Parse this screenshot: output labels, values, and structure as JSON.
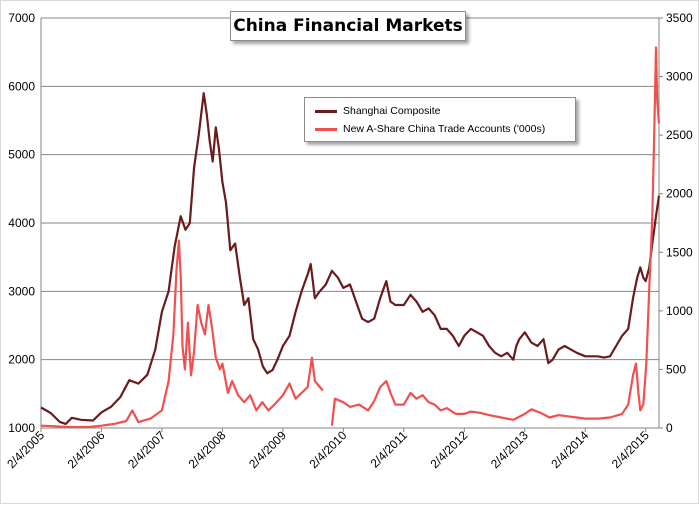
{
  "chart_data": {
    "type": "line",
    "title": "China Financial Markets",
    "xlabel": "",
    "ylabel": "",
    "y_left_lim": [
      1000,
      7000
    ],
    "y_left_ticks": [
      "1000",
      "2000",
      "3000",
      "4000",
      "5000",
      "6000",
      "7000"
    ],
    "y_right_lim": [
      0,
      3500
    ],
    "y_right_ticks": [
      "0",
      "500",
      "1000",
      "1500",
      "2000",
      "2500",
      "3000",
      "3500"
    ],
    "x_start": 2005.09,
    "x_end": 2015.31,
    "x_tick_labels": [
      "2/4/2005",
      "2/4/2006",
      "2/4/2007",
      "2/4/2008",
      "2/4/2009",
      "2/4/2010",
      "2/4/2011",
      "2/4/2012",
      "2/4/2013",
      "2/4/2014",
      "2/4/2015"
    ],
    "x_tick_values": [
      2005.09,
      2006.09,
      2007.09,
      2008.09,
      2009.09,
      2010.09,
      2011.09,
      2012.09,
      2013.09,
      2014.09,
      2015.09
    ],
    "grid": "horizontal",
    "legend_position": "top-center",
    "series": [
      {
        "name": "Shanghai Composite",
        "axis": "left",
        "color": "#6b1b1b",
        "points": [
          [
            2005.09,
            1300
          ],
          [
            2005.25,
            1220
          ],
          [
            2005.4,
            1090
          ],
          [
            2005.5,
            1060
          ],
          [
            2005.6,
            1150
          ],
          [
            2005.75,
            1120
          ],
          [
            2005.95,
            1110
          ],
          [
            2006.09,
            1230
          ],
          [
            2006.25,
            1310
          ],
          [
            2006.4,
            1450
          ],
          [
            2006.55,
            1700
          ],
          [
            2006.7,
            1650
          ],
          [
            2006.85,
            1780
          ],
          [
            2006.98,
            2150
          ],
          [
            2007.09,
            2700
          ],
          [
            2007.2,
            3000
          ],
          [
            2007.3,
            3650
          ],
          [
            2007.4,
            4100
          ],
          [
            2007.48,
            3900
          ],
          [
            2007.55,
            4000
          ],
          [
            2007.62,
            4800
          ],
          [
            2007.7,
            5300
          ],
          [
            2007.78,
            5900
          ],
          [
            2007.83,
            5600
          ],
          [
            2007.88,
            5200
          ],
          [
            2007.93,
            4900
          ],
          [
            2007.98,
            5400
          ],
          [
            2008.03,
            5100
          ],
          [
            2008.09,
            4600
          ],
          [
            2008.15,
            4300
          ],
          [
            2008.22,
            3600
          ],
          [
            2008.3,
            3700
          ],
          [
            2008.38,
            3200
          ],
          [
            2008.45,
            2800
          ],
          [
            2008.52,
            2900
          ],
          [
            2008.6,
            2300
          ],
          [
            2008.68,
            2150
          ],
          [
            2008.76,
            1900
          ],
          [
            2008.83,
            1800
          ],
          [
            2008.92,
            1850
          ],
          [
            2009.0,
            2000
          ],
          [
            2009.09,
            2200
          ],
          [
            2009.2,
            2350
          ],
          [
            2009.3,
            2700
          ],
          [
            2009.4,
            3000
          ],
          [
            2009.5,
            3250
          ],
          [
            2009.55,
            3400
          ],
          [
            2009.62,
            2900
          ],
          [
            2009.7,
            3000
          ],
          [
            2009.8,
            3100
          ],
          [
            2009.9,
            3300
          ],
          [
            2010.0,
            3200
          ],
          [
            2010.09,
            3050
          ],
          [
            2010.2,
            3100
          ],
          [
            2010.3,
            2850
          ],
          [
            2010.4,
            2600
          ],
          [
            2010.5,
            2550
          ],
          [
            2010.6,
            2600
          ],
          [
            2010.7,
            2900
          ],
          [
            2010.8,
            3150
          ],
          [
            2010.87,
            2850
          ],
          [
            2010.95,
            2800
          ],
          [
            2011.09,
            2800
          ],
          [
            2011.2,
            2950
          ],
          [
            2011.3,
            2850
          ],
          [
            2011.4,
            2700
          ],
          [
            2011.5,
            2750
          ],
          [
            2011.6,
            2650
          ],
          [
            2011.7,
            2450
          ],
          [
            2011.8,
            2450
          ],
          [
            2011.9,
            2350
          ],
          [
            2012.0,
            2200
          ],
          [
            2012.09,
            2350
          ],
          [
            2012.2,
            2450
          ],
          [
            2012.3,
            2400
          ],
          [
            2012.4,
            2350
          ],
          [
            2012.5,
            2200
          ],
          [
            2012.6,
            2100
          ],
          [
            2012.7,
            2050
          ],
          [
            2012.8,
            2100
          ],
          [
            2012.9,
            2000
          ],
          [
            2012.95,
            2200
          ],
          [
            2013.0,
            2300
          ],
          [
            2013.09,
            2400
          ],
          [
            2013.2,
            2250
          ],
          [
            2013.3,
            2200
          ],
          [
            2013.4,
            2300
          ],
          [
            2013.48,
            1950
          ],
          [
            2013.55,
            2000
          ],
          [
            2013.65,
            2150
          ],
          [
            2013.75,
            2200
          ],
          [
            2013.85,
            2150
          ],
          [
            2013.95,
            2100
          ],
          [
            2014.09,
            2050
          ],
          [
            2014.2,
            2050
          ],
          [
            2014.3,
            2050
          ],
          [
            2014.4,
            2030
          ],
          [
            2014.5,
            2050
          ],
          [
            2014.6,
            2200
          ],
          [
            2014.7,
            2350
          ],
          [
            2014.8,
            2450
          ],
          [
            2014.88,
            2900
          ],
          [
            2014.95,
            3200
          ],
          [
            2015.0,
            3350
          ],
          [
            2015.05,
            3200
          ],
          [
            2015.09,
            3150
          ],
          [
            2015.15,
            3350
          ],
          [
            2015.2,
            3700
          ],
          [
            2015.26,
            4100
          ],
          [
            2015.31,
            4400
          ]
        ]
      },
      {
        "name": "New A-Share China Trade Accounts ('000s)",
        "axis": "right",
        "color": "#f05050",
        "points": [
          [
            2005.09,
            20
          ],
          [
            2005.3,
            15
          ],
          [
            2005.5,
            10
          ],
          [
            2005.7,
            8
          ],
          [
            2005.9,
            10
          ],
          [
            2006.09,
            20
          ],
          [
            2006.3,
            35
          ],
          [
            2006.5,
            60
          ],
          [
            2006.6,
            150
          ],
          [
            2006.7,
            50
          ],
          [
            2006.9,
            80
          ],
          [
            2007.09,
            150
          ],
          [
            2007.2,
            400
          ],
          [
            2007.28,
            800
          ],
          [
            2007.33,
            1350
          ],
          [
            2007.37,
            1600
          ],
          [
            2007.4,
            1300
          ],
          [
            2007.43,
            700
          ],
          [
            2007.47,
            500
          ],
          [
            2007.52,
            900
          ],
          [
            2007.57,
            450
          ],
          [
            2007.62,
            650
          ],
          [
            2007.68,
            1050
          ],
          [
            2007.74,
            900
          ],
          [
            2007.8,
            800
          ],
          [
            2007.86,
            1050
          ],
          [
            2007.92,
            850
          ],
          [
            2007.98,
            600
          ],
          [
            2008.05,
            500
          ],
          [
            2008.09,
            550
          ],
          [
            2008.18,
            300
          ],
          [
            2008.25,
            400
          ],
          [
            2008.35,
            280
          ],
          [
            2008.45,
            220
          ],
          [
            2008.55,
            280
          ],
          [
            2008.65,
            150
          ],
          [
            2008.75,
            220
          ],
          [
            2008.85,
            150
          ],
          [
            2008.95,
            200
          ],
          [
            2009.09,
            280
          ],
          [
            2009.2,
            380
          ],
          [
            2009.3,
            250
          ],
          [
            2009.4,
            300
          ],
          [
            2009.5,
            350
          ],
          [
            2009.57,
            600
          ],
          [
            2009.62,
            400
          ],
          [
            2009.7,
            350
          ],
          [
            2009.75,
            320
          ],
          [
            2009.8,
            null
          ],
          [
            2009.88,
            null
          ],
          [
            2009.9,
            20
          ],
          [
            2009.95,
            250
          ],
          [
            2010.09,
            220
          ],
          [
            2010.2,
            180
          ],
          [
            2010.35,
            200
          ],
          [
            2010.5,
            150
          ],
          [
            2010.6,
            230
          ],
          [
            2010.7,
            350
          ],
          [
            2010.8,
            400
          ],
          [
            2010.87,
            300
          ],
          [
            2010.95,
            200
          ],
          [
            2011.09,
            200
          ],
          [
            2011.2,
            300
          ],
          [
            2011.3,
            250
          ],
          [
            2011.4,
            280
          ],
          [
            2011.5,
            220
          ],
          [
            2011.6,
            200
          ],
          [
            2011.7,
            150
          ],
          [
            2011.8,
            170
          ],
          [
            2011.95,
            120
          ],
          [
            2012.09,
            120
          ],
          [
            2012.2,
            140
          ],
          [
            2012.35,
            130
          ],
          [
            2012.5,
            110
          ],
          [
            2012.7,
            90
          ],
          [
            2012.9,
            70
          ],
          [
            2013.09,
            120
          ],
          [
            2013.2,
            160
          ],
          [
            2013.35,
            130
          ],
          [
            2013.5,
            90
          ],
          [
            2013.65,
            110
          ],
          [
            2013.8,
            100
          ],
          [
            2013.95,
            90
          ],
          [
            2014.09,
            80
          ],
          [
            2014.3,
            80
          ],
          [
            2014.5,
            90
          ],
          [
            2014.7,
            120
          ],
          [
            2014.8,
            200
          ],
          [
            2014.88,
            450
          ],
          [
            2014.93,
            550
          ],
          [
            2014.97,
            300
          ],
          [
            2015.0,
            150
          ],
          [
            2015.05,
            200
          ],
          [
            2015.1,
            550
          ],
          [
            2015.15,
            1200
          ],
          [
            2015.2,
            1800
          ],
          [
            2015.23,
            2500
          ],
          [
            2015.26,
            3250
          ],
          [
            2015.28,
            2800
          ],
          [
            2015.31,
            2600
          ]
        ]
      }
    ]
  }
}
